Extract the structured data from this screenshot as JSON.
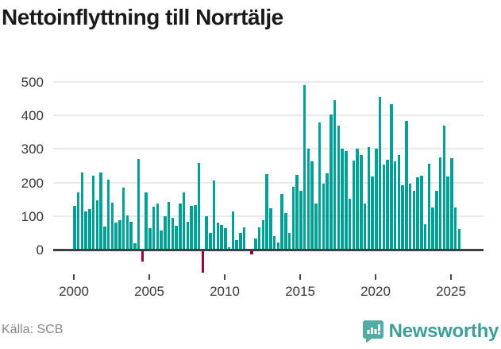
{
  "title": "Nettoinflyttning till Norrtälje",
  "source": "Källa: SCB",
  "branding": {
    "name": "Newsworthy",
    "icon": "newsworthy-speech-bubble-chart"
  },
  "colors": {
    "bar_positive": "#00a096",
    "bar_negative": "#98003f",
    "gridline": "#e9e9e9",
    "zero_line": "#3c4043",
    "axis_text": "#383838",
    "title_text": "#1a1a1a",
    "source_text": "#85898d",
    "brand_teal": "#3d9e98",
    "brand_icon_teal": "#54aca5"
  },
  "chart_data": {
    "type": "bar",
    "title": "Nettoinflyttning till Norrtälje",
    "xlabel": "",
    "ylabel": "",
    "period": "quarterly",
    "start": "2000-Q1",
    "end": "2025-Q3",
    "x_tick_labels": [
      "2000",
      "2005",
      "2010",
      "2015",
      "2020",
      "2025"
    ],
    "y_tick_labels": [
      "0",
      "100",
      "200",
      "300",
      "400",
      "500"
    ],
    "ylim": [
      -75,
      520
    ],
    "grid": true,
    "legend": "none",
    "values": [
      130,
      170,
      230,
      113,
      122,
      220,
      148,
      230,
      69,
      209,
      139,
      80,
      88,
      185,
      103,
      83,
      20,
      271,
      -30,
      170,
      63,
      127,
      138,
      58,
      100,
      143,
      95,
      71,
      138,
      171,
      84,
      131,
      133,
      258,
      -65,
      100,
      49,
      206,
      80,
      74,
      63,
      8,
      113,
      29,
      49,
      66,
      0,
      -10,
      33,
      66,
      88,
      225,
      124,
      41,
      21,
      165,
      110,
      50,
      187,
      222,
      175,
      490,
      300,
      263,
      138,
      380,
      197,
      228,
      402,
      447,
      370,
      300,
      295,
      151,
      265,
      300,
      283,
      138,
      306,
      219,
      301,
      455,
      253,
      269,
      435,
      263,
      283,
      192,
      384,
      198,
      175,
      216,
      220,
      75,
      255,
      125,
      175,
      275,
      370,
      218,
      272,
      126,
      62
    ]
  }
}
